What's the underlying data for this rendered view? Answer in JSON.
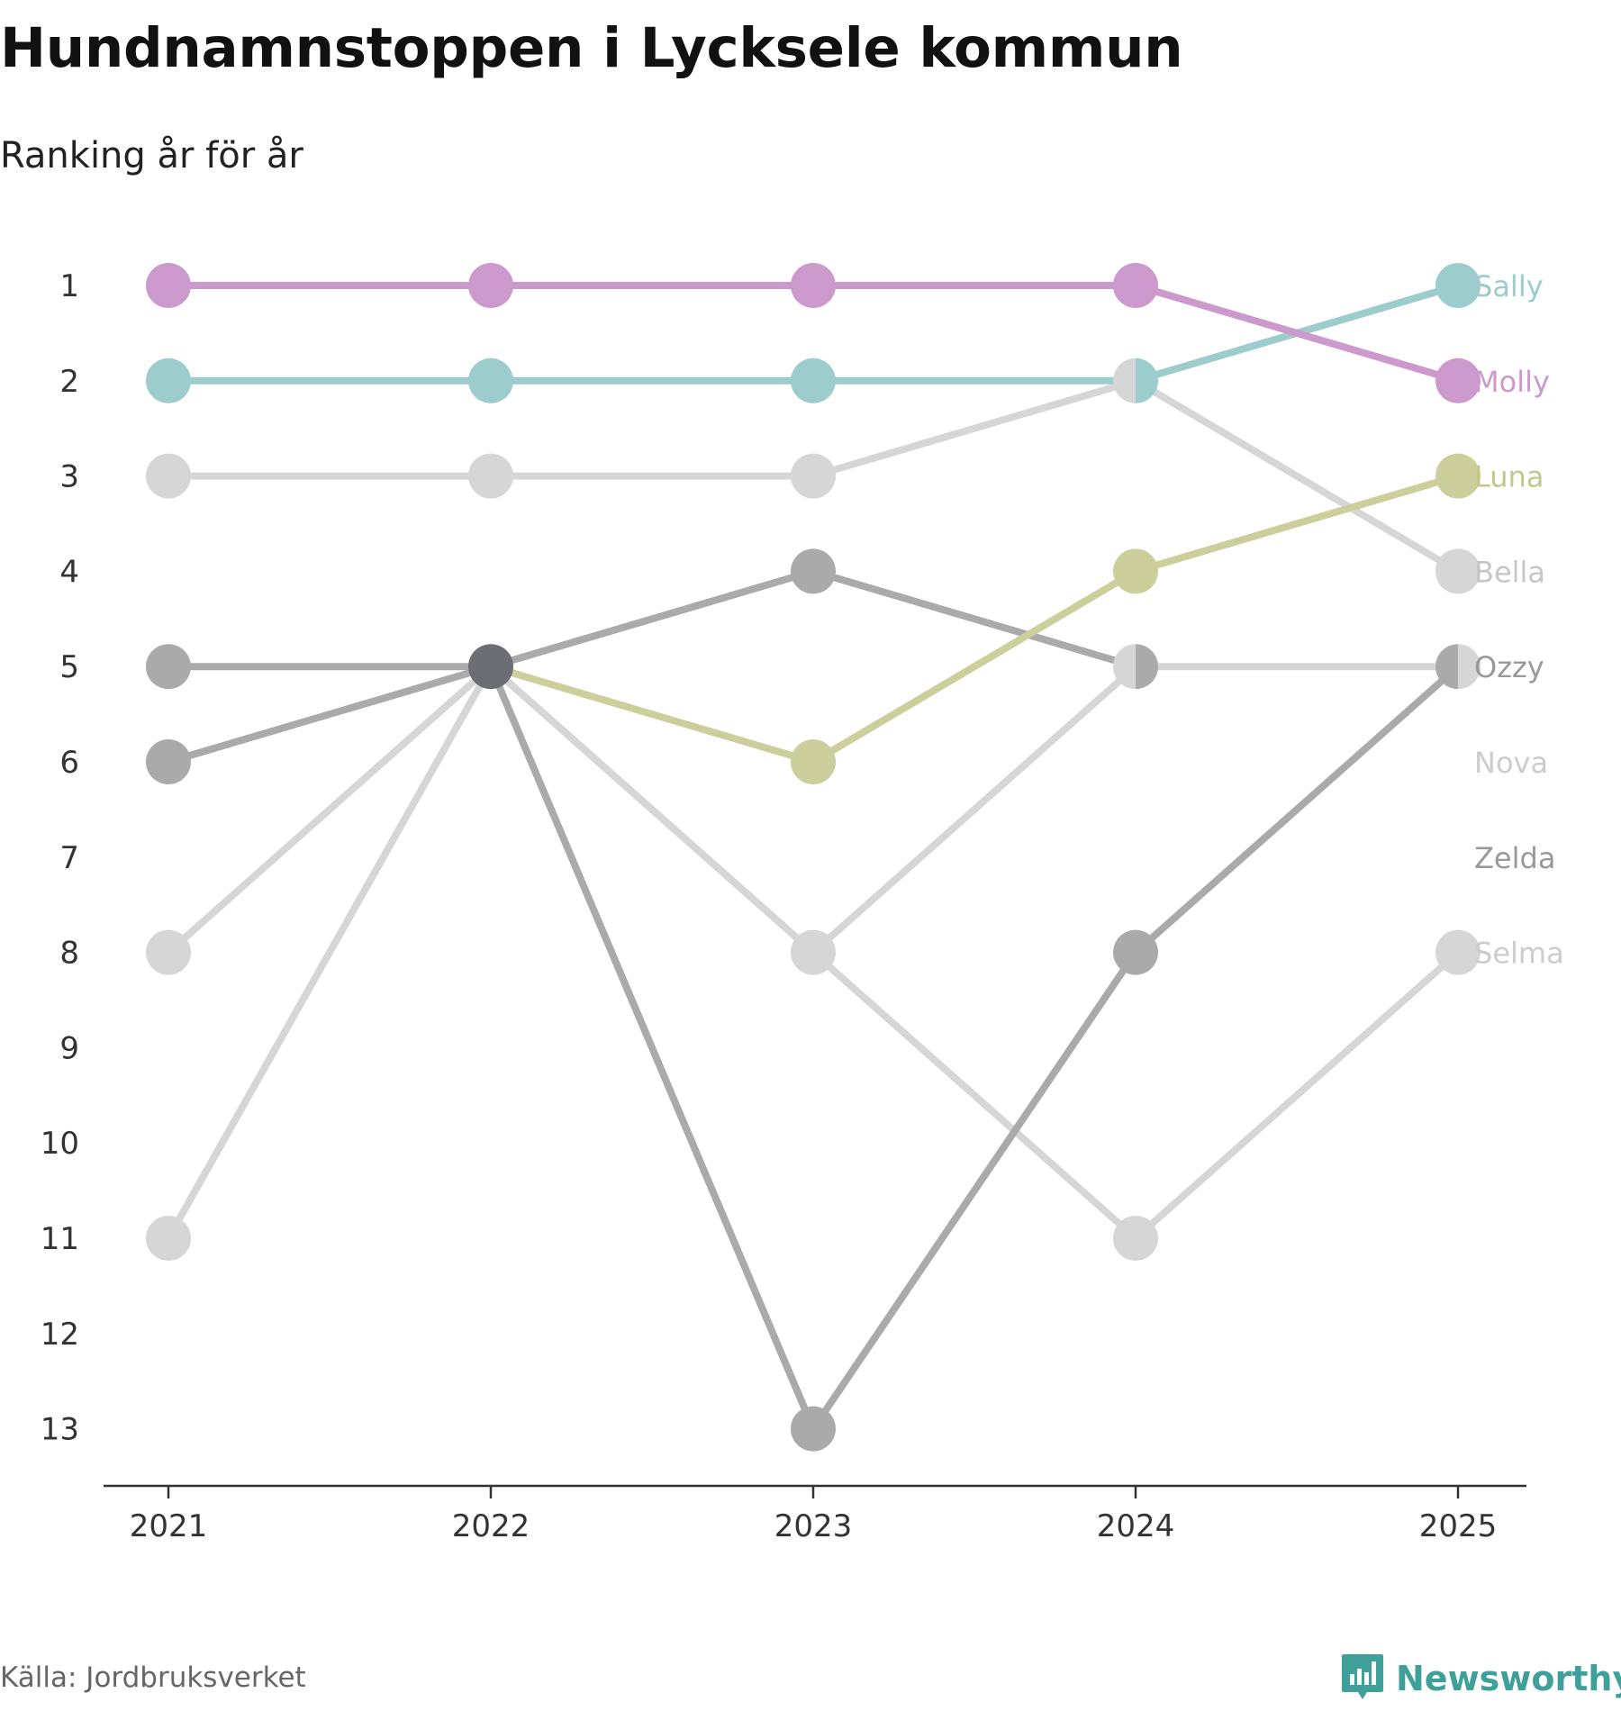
{
  "title": "Hundnamnstoppen i Lycksele kommun",
  "subtitle": "Ranking år för år",
  "source": "Källa: Jordbruksverket",
  "brand": {
    "name": "Newsworthy",
    "icon": "newsworthy-logo-icon",
    "color": "#3fa09a"
  },
  "chart_data": {
    "type": "line",
    "subtype": "bump",
    "title": "Hundnamnstoppen i Lycksele kommun",
    "subtitle": "Ranking år för år",
    "xlabel": "",
    "ylabel": "",
    "x": [
      2021,
      2022,
      2023,
      2024,
      2025
    ],
    "x_tick_labels": [
      "2021",
      "2022",
      "2023",
      "2024",
      "2025"
    ],
    "y_tick_labels": [
      "1",
      "2",
      "3",
      "4",
      "5",
      "6",
      "7",
      "8",
      "9",
      "10",
      "11",
      "12",
      "13"
    ],
    "ylim": [
      1,
      13
    ],
    "y_inverted": true,
    "grid": false,
    "series": [
      {
        "name": "Selma",
        "color": "#d6d6d6",
        "label_color": "#cccccc",
        "values": [
          11,
          5,
          8,
          11,
          8
        ]
      },
      {
        "name": "Zelda",
        "color": "#aaaaaa",
        "label_color": "#999999",
        "values": [
          6,
          5,
          13,
          8,
          5
        ]
      },
      {
        "name": "Nova",
        "color": "#d6d6d6",
        "label_color": "#cccccc",
        "values": [
          8,
          5,
          8,
          5,
          5
        ]
      },
      {
        "name": "Ozzy",
        "color": "#aaaaaa",
        "label_color": "#999999",
        "values": [
          5,
          5,
          4,
          5,
          null
        ]
      },
      {
        "name": "Bella",
        "color": "#d6d6d6",
        "label_color": "#c6c6c6",
        "values": [
          3,
          3,
          3,
          2,
          4
        ]
      },
      {
        "name": "Luna",
        "color": "#cccf9b",
        "label_color": "#c4c78a",
        "values": [
          null,
          5,
          6,
          4,
          3
        ]
      },
      {
        "name": "Sally",
        "color": "#9ccccc",
        "label_color": "#9ccccc",
        "values": [
          2,
          2,
          2,
          2,
          1
        ]
      },
      {
        "name": "Molly",
        "color": "#cc99cc",
        "label_color": "#cc99cc",
        "values": [
          1,
          1,
          1,
          1,
          2
        ]
      }
    ],
    "end_labels": [
      {
        "name": "Sally",
        "rank": 1
      },
      {
        "name": "Molly",
        "rank": 2
      },
      {
        "name": "Luna",
        "rank": 3
      },
      {
        "name": "Bella",
        "rank": 4
      },
      {
        "name": "Ozzy",
        "rank": 5
      },
      {
        "name": "Nova",
        "rank": 6
      },
      {
        "name": "Zelda",
        "rank": 7
      },
      {
        "name": "Selma",
        "rank": 8
      }
    ],
    "overlap_color": "#6d6d75"
  }
}
